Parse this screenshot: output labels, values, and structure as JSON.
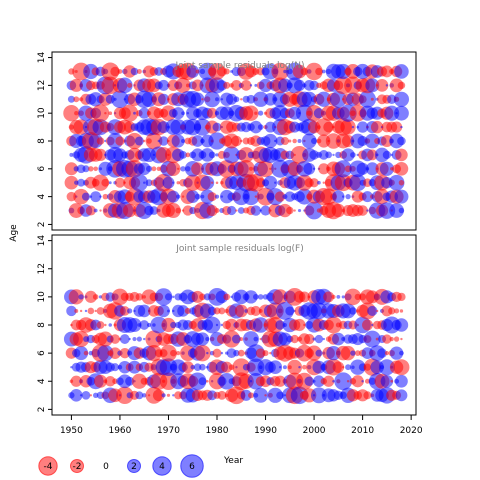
{
  "colors": {
    "negative": "#ff0000",
    "positive": "#0000ff",
    "panel_title": "#808080",
    "axis": "#000000"
  },
  "shared_axes": {
    "xlabel": "Year",
    "ylabel": "Age",
    "x_ticks": [
      "1950",
      "1960",
      "1970",
      "1980",
      "1990",
      "2000",
      "2010",
      "2020"
    ],
    "y_ticks": [
      "2",
      "4",
      "6",
      "8",
      "10",
      "12",
      "14"
    ]
  },
  "legend": {
    "values": [
      "-4",
      "-2",
      "0",
      "2",
      "4",
      "6"
    ],
    "title": "Year"
  },
  "chart_data": [
    {
      "type": "scatter",
      "title": "Joint sample residuals log(N)",
      "xlabel": "",
      "ylabel": "Age",
      "xlim": [
        1946,
        2021
      ],
      "ylim": [
        1.6,
        14.4
      ],
      "x_range": [
        1950,
        2018
      ],
      "ages": [
        3,
        4,
        5,
        6,
        7,
        8,
        9,
        10,
        11,
        12,
        13
      ],
      "encoding": "bubble size proportional to |residual|; red = negative, blue = positive",
      "grid": false
    },
    {
      "type": "scatter",
      "title": "Joint sample residuals log(F)",
      "xlabel": "Year",
      "ylabel": "Age",
      "xlim": [
        1946,
        2021
      ],
      "ylim": [
        1.6,
        14.4
      ],
      "x_range": [
        1950,
        2018
      ],
      "ages": [
        3,
        4,
        5,
        6,
        7,
        8,
        9,
        10
      ],
      "encoding": "bubble size proportional to |residual|; red = negative, blue = positive",
      "grid": false
    }
  ]
}
